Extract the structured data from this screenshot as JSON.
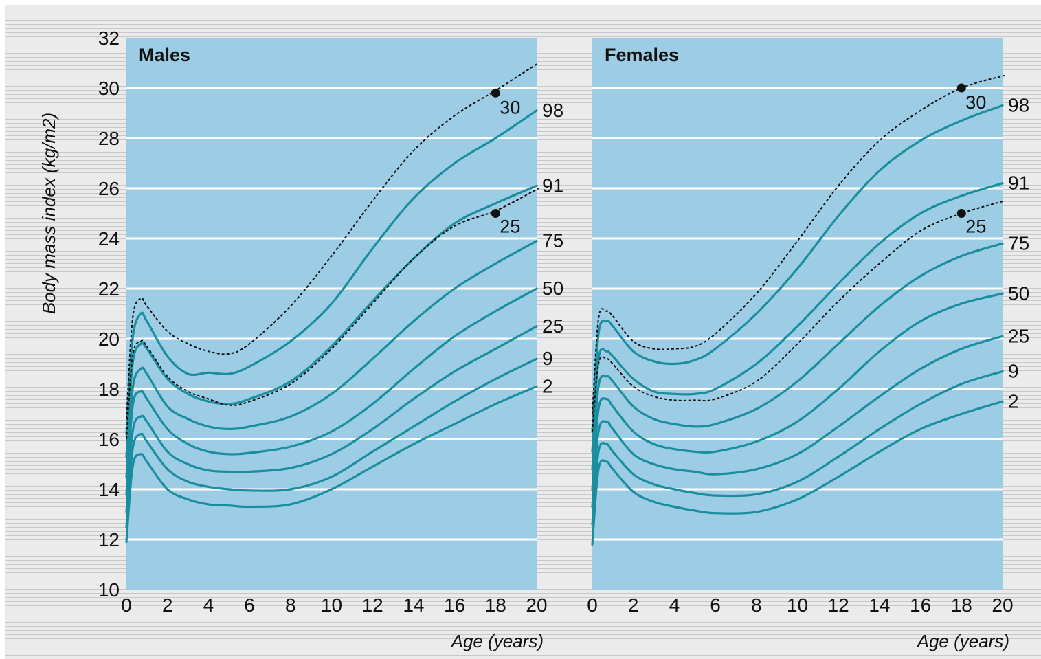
{
  "chart_data": [
    {
      "type": "line",
      "title": "Males",
      "xlabel": "Age (years)",
      "ylabel": "Body mass index (kg/m2)",
      "xlim": [
        0,
        20
      ],
      "ylim": [
        10,
        32
      ],
      "x_ticks": [
        "0",
        "2",
        "4",
        "6",
        "8",
        "10",
        "12",
        "14",
        "16",
        "18",
        "20"
      ],
      "y_ticks": [
        "10",
        "12",
        "14",
        "16",
        "18",
        "20",
        "22",
        "24",
        "26",
        "28",
        "30",
        "32"
      ],
      "grid": true,
      "percentile_series": [
        {
          "name": "98",
          "x": [
            0,
            0.3,
            0.7,
            1,
            2,
            3,
            4,
            5,
            6,
            8,
            10,
            12,
            14,
            16,
            18,
            20
          ],
          "y": [
            16.2,
            20.0,
            21.0,
            20.7,
            19.3,
            18.6,
            18.65,
            18.6,
            18.9,
            19.9,
            21.4,
            23.6,
            25.6,
            27.0,
            28.0,
            29.1
          ]
        },
        {
          "name": "91",
          "x": [
            0,
            0.3,
            0.7,
            1,
            2,
            3,
            4,
            5,
            6,
            8,
            10,
            12,
            14,
            16,
            18,
            20
          ],
          "y": [
            15.3,
            19.0,
            19.8,
            19.6,
            18.4,
            17.8,
            17.5,
            17.4,
            17.6,
            18.3,
            19.7,
            21.5,
            23.2,
            24.6,
            25.4,
            26.1
          ]
        },
        {
          "name": "75",
          "x": [
            0,
            0.3,
            0.7,
            1,
            2,
            3,
            4,
            5,
            6,
            8,
            10,
            12,
            14,
            16,
            18,
            20
          ],
          "y": [
            14.5,
            18.0,
            18.8,
            18.6,
            17.3,
            16.8,
            16.5,
            16.4,
            16.5,
            16.9,
            17.8,
            19.2,
            20.7,
            22.0,
            23.0,
            23.9
          ]
        },
        {
          "name": "50",
          "x": [
            0,
            0.3,
            0.7,
            1,
            2,
            3,
            4,
            5,
            6,
            8,
            10,
            12,
            14,
            16,
            18,
            20
          ],
          "y": [
            13.8,
            17.3,
            17.9,
            17.6,
            16.4,
            15.8,
            15.5,
            15.4,
            15.45,
            15.7,
            16.3,
            17.4,
            18.8,
            20.1,
            21.1,
            22.0
          ]
        },
        {
          "name": "25",
          "x": [
            0,
            0.3,
            0.7,
            1,
            2,
            3,
            4,
            5,
            6,
            8,
            10,
            12,
            14,
            16,
            18,
            20
          ],
          "y": [
            13.1,
            16.3,
            16.9,
            16.7,
            15.5,
            15.0,
            14.75,
            14.7,
            14.7,
            14.85,
            15.4,
            16.4,
            17.6,
            18.7,
            19.6,
            20.5
          ]
        },
        {
          "name": "9",
          "x": [
            0,
            0.3,
            0.7,
            1,
            2,
            3,
            4,
            5,
            6,
            8,
            10,
            12,
            14,
            16,
            18,
            20
          ],
          "y": [
            12.5,
            15.6,
            16.2,
            15.9,
            14.8,
            14.3,
            14.1,
            14.0,
            13.95,
            14.0,
            14.5,
            15.5,
            16.5,
            17.5,
            18.4,
            19.2
          ]
        },
        {
          "name": "2",
          "x": [
            0,
            0.3,
            0.7,
            1,
            2,
            3,
            4,
            5,
            6,
            8,
            10,
            12,
            14,
            16,
            18,
            20
          ],
          "y": [
            11.9,
            14.9,
            15.4,
            15.1,
            14.0,
            13.6,
            13.4,
            13.35,
            13.3,
            13.4,
            14.0,
            14.9,
            15.8,
            16.6,
            17.4,
            18.1
          ]
        }
      ],
      "cutoff_series": [
        {
          "name": "30",
          "x": [
            0,
            0.3,
            0.7,
            1,
            2,
            3,
            4,
            5,
            6,
            8,
            10,
            12,
            14,
            16,
            18,
            20
          ],
          "y": [
            16.8,
            20.8,
            21.6,
            21.3,
            20.3,
            19.8,
            19.5,
            19.4,
            19.8,
            21.3,
            23.3,
            25.5,
            27.5,
            28.9,
            29.9,
            31.0
          ]
        },
        {
          "name": "25",
          "x": [
            0,
            0.3,
            0.7,
            1,
            2,
            3,
            4,
            5,
            6,
            8,
            10,
            12,
            14,
            16,
            18,
            20
          ],
          "y": [
            16.0,
            19.3,
            19.9,
            19.7,
            18.5,
            17.9,
            17.6,
            17.35,
            17.5,
            18.2,
            19.6,
            21.4,
            23.2,
            24.5,
            25.1,
            26.0
          ]
        }
      ],
      "cutoff_points": [
        {
          "label": "30",
          "x": 18,
          "y": 29.8
        },
        {
          "label": "25",
          "x": 18,
          "y": 25.0
        }
      ]
    },
    {
      "type": "line",
      "title": "Females",
      "xlabel": "Age (years)",
      "xlim": [
        0,
        20
      ],
      "ylim": [
        10,
        32
      ],
      "x_ticks": [
        "0",
        "2",
        "4",
        "6",
        "8",
        "10",
        "12",
        "14",
        "16",
        "18",
        "20"
      ],
      "grid": true,
      "percentile_series": [
        {
          "name": "98",
          "x": [
            0,
            0.3,
            0.7,
            1,
            2,
            3,
            4,
            5,
            6,
            8,
            10,
            12,
            14,
            16,
            18,
            20
          ],
          "y": [
            16.3,
            20.2,
            20.7,
            20.5,
            19.5,
            19.1,
            19.0,
            19.15,
            19.6,
            21.0,
            22.8,
            24.9,
            26.7,
            27.9,
            28.7,
            29.3
          ]
        },
        {
          "name": "91",
          "x": [
            0,
            0.3,
            0.7,
            1,
            2,
            3,
            4,
            5,
            6,
            8,
            10,
            12,
            14,
            16,
            18,
            20
          ],
          "y": [
            15.5,
            19.2,
            19.5,
            19.3,
            18.4,
            17.9,
            17.8,
            17.8,
            18.0,
            19.0,
            20.5,
            22.2,
            23.8,
            25.0,
            25.7,
            26.2
          ]
        },
        {
          "name": "75",
          "x": [
            0,
            0.3,
            0.7,
            1,
            2,
            3,
            4,
            5,
            6,
            8,
            10,
            12,
            14,
            16,
            18,
            20
          ],
          "y": [
            14.8,
            18.1,
            18.5,
            18.3,
            17.3,
            16.8,
            16.6,
            16.5,
            16.6,
            17.2,
            18.3,
            19.8,
            21.3,
            22.5,
            23.3,
            23.8
          ]
        },
        {
          "name": "50",
          "x": [
            0,
            0.3,
            0.7,
            1,
            2,
            3,
            4,
            5,
            6,
            8,
            10,
            12,
            14,
            16,
            18,
            20
          ],
          "y": [
            14.0,
            17.2,
            17.6,
            17.3,
            16.3,
            15.8,
            15.6,
            15.5,
            15.5,
            15.9,
            16.7,
            18.0,
            19.5,
            20.7,
            21.4,
            21.8
          ]
        },
        {
          "name": "25",
          "x": [
            0,
            0.3,
            0.7,
            1,
            2,
            3,
            4,
            5,
            6,
            8,
            10,
            12,
            14,
            16,
            18,
            20
          ],
          "y": [
            13.3,
            16.3,
            16.7,
            16.4,
            15.4,
            15.0,
            14.8,
            14.7,
            14.6,
            14.8,
            15.4,
            16.5,
            17.7,
            18.8,
            19.6,
            20.1
          ]
        },
        {
          "name": "9",
          "x": [
            0,
            0.3,
            0.7,
            1,
            2,
            3,
            4,
            5,
            6,
            8,
            10,
            12,
            14,
            16,
            18,
            20
          ],
          "y": [
            12.6,
            15.5,
            15.8,
            15.5,
            14.6,
            14.2,
            14.0,
            13.85,
            13.75,
            13.8,
            14.3,
            15.3,
            16.4,
            17.4,
            18.2,
            18.7
          ]
        },
        {
          "name": "2",
          "x": [
            0,
            0.3,
            0.7,
            1,
            2,
            3,
            4,
            5,
            6,
            8,
            10,
            12,
            14,
            16,
            18,
            20
          ],
          "y": [
            11.8,
            14.8,
            15.1,
            14.8,
            13.9,
            13.5,
            13.3,
            13.15,
            13.05,
            13.1,
            13.6,
            14.5,
            15.5,
            16.4,
            17.0,
            17.5
          ]
        }
      ],
      "cutoff_series": [
        {
          "name": "30",
          "x": [
            0,
            0.3,
            0.7,
            1,
            2,
            3,
            4,
            5,
            6,
            8,
            10,
            12,
            14,
            16,
            18,
            20
          ],
          "y": [
            17.0,
            20.8,
            21.1,
            20.9,
            19.9,
            19.6,
            19.6,
            19.7,
            20.2,
            21.8,
            23.9,
            26.1,
            27.9,
            29.1,
            30.0,
            30.5
          ]
        },
        {
          "name": "25",
          "x": [
            0,
            0.3,
            0.7,
            1,
            2,
            3,
            4,
            5,
            6,
            8,
            10,
            12,
            14,
            16,
            18,
            20
          ],
          "y": [
            16.3,
            19.0,
            19.2,
            19.0,
            18.1,
            17.7,
            17.55,
            17.55,
            17.6,
            18.3,
            19.8,
            21.5,
            23.0,
            24.3,
            25.0,
            25.5
          ]
        }
      ],
      "cutoff_points": [
        {
          "label": "30",
          "x": 18,
          "y": 30.0
        },
        {
          "label": "25",
          "x": 18,
          "y": 25.0
        }
      ]
    }
  ],
  "colors": {
    "background": "#ebebeb",
    "stripe": "#c8c8c8",
    "panel": "#9ccde5",
    "gridline": "#ffffff",
    "percentile_line": "#1a8e9e",
    "cutoff_line": "#111111"
  }
}
